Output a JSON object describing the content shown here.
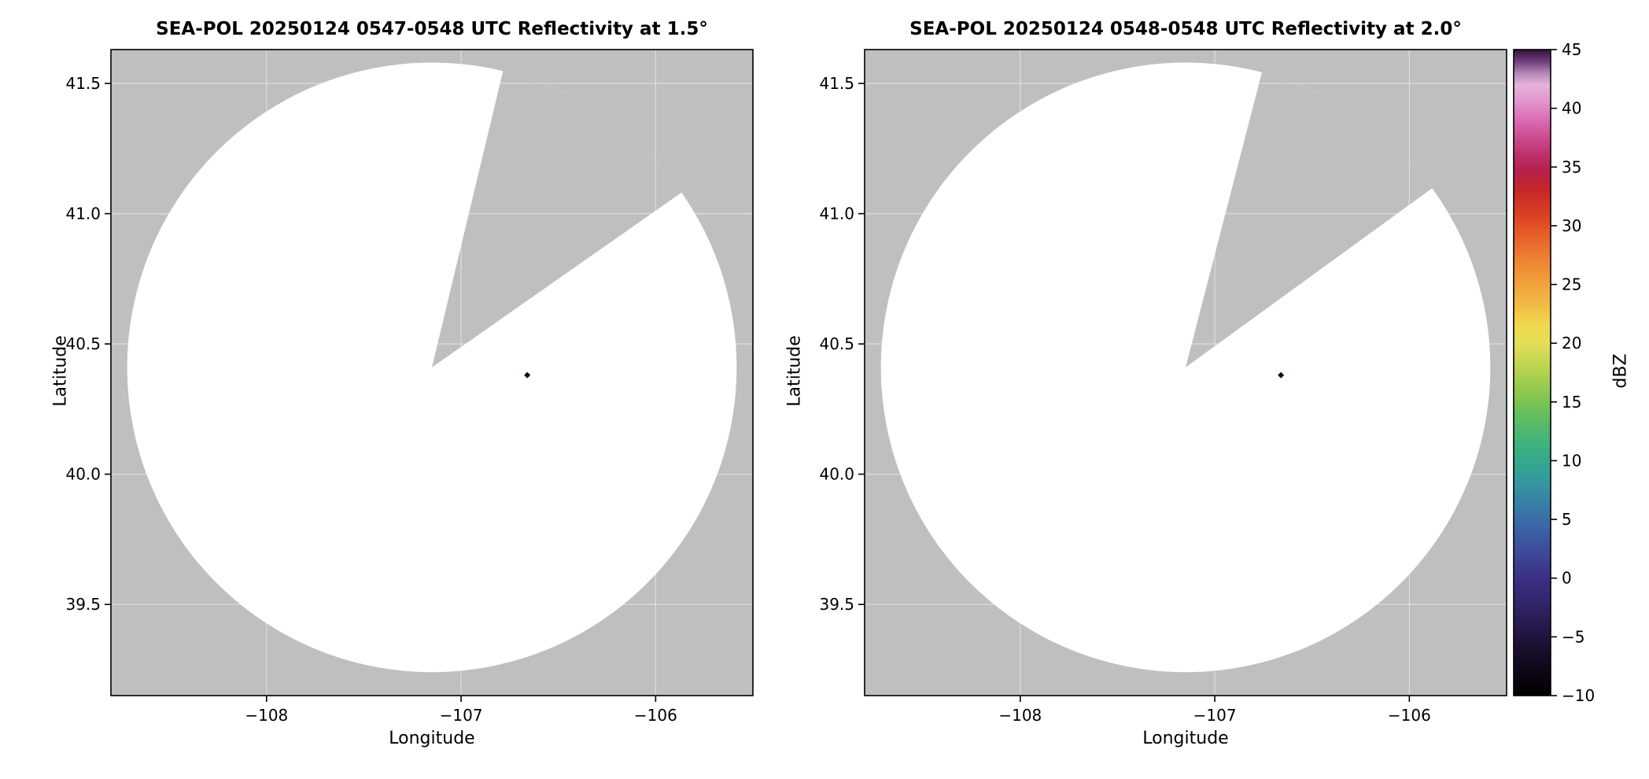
{
  "figure": {
    "bg_color": "#ffffff",
    "panel_bg_color": "#bfbfbf",
    "scan_fill_color": "#ffffff",
    "grid_color": "#ffffff",
    "frame_color": "#000000",
    "text_color": "#000000"
  },
  "chart_data": [
    {
      "type": "radar_ppi",
      "title": "SEA-POL 20250124 0547-0548 UTC Reflectivity at 1.5°",
      "xlabel": "Longitude",
      "ylabel": "Latitude",
      "xlim": [
        -108.8,
        -105.5
      ],
      "ylim": [
        39.15,
        41.63
      ],
      "xticks": [
        -108,
        -107,
        -106
      ],
      "xtick_labels": [
        "−108",
        "−107",
        "−106"
      ],
      "yticks": [
        39.5,
        40.0,
        40.5,
        41.0,
        41.5
      ],
      "ytick_labels": [
        "39.5",
        "40.0",
        "40.5",
        "41.0",
        "41.5"
      ],
      "radar_center": {
        "lon": -107.15,
        "lat": 40.41
      },
      "scan_radius_deg_lat": 1.17,
      "blocked_sector_azimuth_deg": [
        13.5,
        55
      ],
      "echoes": [
        {
          "lon": -106.66,
          "lat": 40.38,
          "dbz": -8
        }
      ]
    },
    {
      "type": "radar_ppi",
      "title": "SEA-POL 20250124 0548-0548 UTC Reflectivity at 2.0°",
      "xlabel": "Longitude",
      "ylabel": "Latitude",
      "xlim": [
        -108.8,
        -105.5
      ],
      "ylim": [
        39.15,
        41.63
      ],
      "xticks": [
        -108,
        -107,
        -106
      ],
      "xtick_labels": [
        "−108",
        "−107",
        "−106"
      ],
      "yticks": [
        39.5,
        40.0,
        40.5,
        41.0,
        41.5
      ],
      "ytick_labels": [
        "39.5",
        "40.0",
        "40.5",
        "41.0",
        "41.5"
      ],
      "radar_center": {
        "lon": -107.15,
        "lat": 40.41
      },
      "scan_radius_deg_lat": 1.17,
      "blocked_sector_azimuth_deg": [
        14.5,
        54
      ],
      "echoes": [
        {
          "lon": -106.66,
          "lat": 40.38,
          "dbz": -8
        }
      ]
    }
  ],
  "colorbar": {
    "label": "dBZ",
    "min": -10,
    "max": 45,
    "ticks": [
      {
        "value": 45,
        "label": "45"
      },
      {
        "value": 40,
        "label": "40"
      },
      {
        "value": 35,
        "label": "35"
      },
      {
        "value": 30,
        "label": "30"
      },
      {
        "value": 25,
        "label": "25"
      },
      {
        "value": 20,
        "label": "20"
      },
      {
        "value": 15,
        "label": "15"
      },
      {
        "value": 10,
        "label": "10"
      },
      {
        "value": 5,
        "label": "5"
      },
      {
        "value": 0,
        "label": "0"
      },
      {
        "value": -5,
        "label": "−5"
      },
      {
        "value": -10,
        "label": "−10"
      }
    ],
    "stops": [
      {
        "value": -10,
        "color": "#000000"
      },
      {
        "value": -8,
        "color": "#0d0716"
      },
      {
        "value": -6,
        "color": "#1b0f2e"
      },
      {
        "value": -4,
        "color": "#281a4d"
      },
      {
        "value": -2,
        "color": "#32256b"
      },
      {
        "value": 0,
        "color": "#3a3085"
      },
      {
        "value": 2,
        "color": "#3e4798"
      },
      {
        "value": 4,
        "color": "#3c60a5"
      },
      {
        "value": 6,
        "color": "#387ba8"
      },
      {
        "value": 8,
        "color": "#3495a0"
      },
      {
        "value": 10,
        "color": "#35a98d"
      },
      {
        "value": 12,
        "color": "#46b575"
      },
      {
        "value": 14,
        "color": "#66bf5c"
      },
      {
        "value": 16,
        "color": "#90c94f"
      },
      {
        "value": 18,
        "color": "#bcd44f"
      },
      {
        "value": 20,
        "color": "#e4de58"
      },
      {
        "value": 21.5,
        "color": "#f1d94f"
      },
      {
        "value": 23,
        "color": "#f2bf45"
      },
      {
        "value": 25,
        "color": "#f1a23c"
      },
      {
        "value": 27,
        "color": "#ee8432"
      },
      {
        "value": 29,
        "color": "#e76129"
      },
      {
        "value": 31,
        "color": "#d94023"
      },
      {
        "value": 33,
        "color": "#c62828"
      },
      {
        "value": 34.5,
        "color": "#b51f47"
      },
      {
        "value": 36,
        "color": "#bd2f6b"
      },
      {
        "value": 37.5,
        "color": "#cc4b90"
      },
      {
        "value": 39,
        "color": "#da6cb2"
      },
      {
        "value": 40.5,
        "color": "#e392cb"
      },
      {
        "value": 42,
        "color": "#e6b3da"
      },
      {
        "value": 43,
        "color": "#b286b8"
      },
      {
        "value": 44,
        "color": "#713d7c"
      },
      {
        "value": 45,
        "color": "#321438"
      }
    ]
  }
}
